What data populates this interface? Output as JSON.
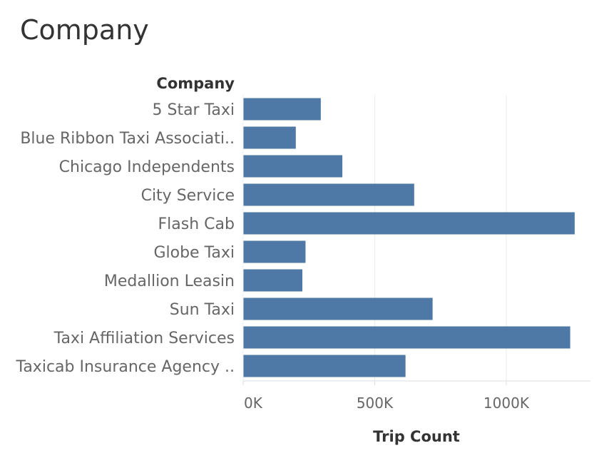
{
  "sheet": {
    "title": "Company"
  },
  "colors": {
    "bar": "#4e79a7",
    "grid": "#ececec",
    "axis": "#dddddd"
  },
  "chart_data": {
    "type": "bar",
    "orientation": "horizontal",
    "row_header": "Company",
    "xlabel": "Trip Count",
    "categories": [
      "5 Star Taxi",
      "Blue Ribbon Taxi Associati..",
      "Chicago Independents",
      "City Service",
      "Flash Cab",
      "Globe Taxi",
      "Medallion Leasin",
      "Sun Taxi",
      "Taxi Affiliation Services",
      "Taxicab Insurance Agency .."
    ],
    "values": [
      295000,
      200000,
      377000,
      650000,
      1260000,
      237000,
      225000,
      720000,
      1243000,
      617000
    ],
    "xlim": [
      0,
      1320000
    ],
    "ticks": [
      {
        "value": 0,
        "label": "0K"
      },
      {
        "value": 500000,
        "label": "500K"
      },
      {
        "value": 1000000,
        "label": "1000K"
      }
    ],
    "grid": true
  }
}
